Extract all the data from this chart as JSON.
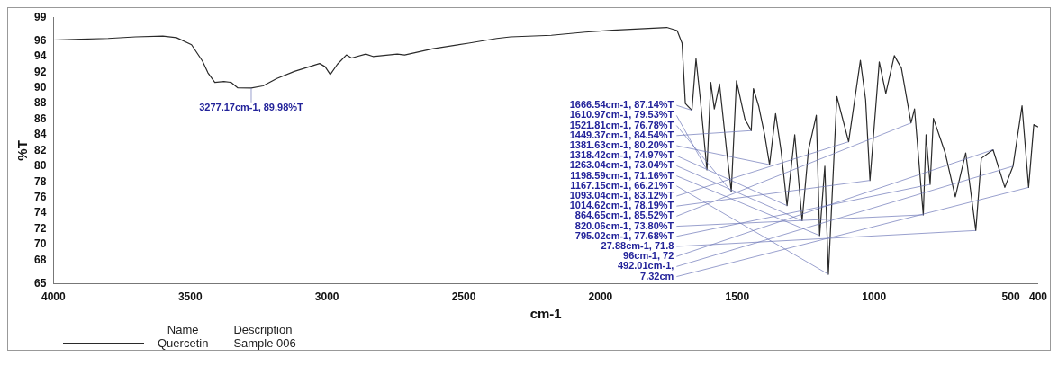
{
  "chart_data": {
    "type": "line",
    "xlabel": "cm-1",
    "ylabel": "%T",
    "legend_title": "Name",
    "legend": "bottom",
    "grid": false,
    "xlim": [
      4000,
      400
    ],
    "xticks": [
      4000,
      3500,
      3000,
      2500,
      2000,
      1500,
      1000,
      500,
      400
    ],
    "ylim": [
      65,
      99
    ],
    "yticks": [
      65,
      68,
      70,
      72,
      74,
      76,
      78,
      80,
      82,
      84,
      86,
      88,
      90,
      92,
      94,
      96,
      99
    ],
    "series": [
      {
        "name": "Quercetin",
        "color": "#2a2a2a",
        "x": [
          4000,
          3900,
          3800,
          3700,
          3600,
          3550,
          3495,
          3455,
          3435,
          3410,
          3377,
          3351,
          3326,
          3277,
          3234,
          3183,
          3119,
          3027,
          3007,
          2988,
          2962,
          2929,
          2910,
          2858,
          2832,
          2743,
          2716,
          2612,
          2482,
          2379,
          2329,
          2180,
          2056,
          1956,
          1758,
          1720,
          1702,
          1690,
          1666,
          1651,
          1635,
          1611,
          1597,
          1584,
          1565,
          1539,
          1522,
          1503,
          1472,
          1449,
          1441,
          1422,
          1400,
          1382,
          1360,
          1340,
          1318,
          1290,
          1263,
          1240,
          1211,
          1199,
          1180,
          1167,
          1136,
          1093,
          1050,
          1031,
          1015,
          981,
          957,
          926,
          900,
          865,
          852,
          820,
          810,
          795,
          783,
          740,
          703,
          665,
          628,
          608,
          565,
          522,
          492,
          459,
          435,
          416,
          400
        ],
        "values": [
          96.1,
          96.2,
          96.3,
          96.5,
          96.6,
          96.4,
          95.5,
          93.4,
          91.9,
          90.7,
          90.8,
          90.7,
          90.0,
          89.98,
          90.25,
          91.2,
          92.1,
          93.1,
          92.7,
          91.7,
          93.0,
          94.2,
          93.8,
          94.3,
          94.0,
          94.3,
          94.2,
          95.0,
          95.7,
          96.3,
          96.5,
          96.7,
          97.1,
          97.35,
          97.7,
          97.3,
          95.7,
          88.0,
          87.14,
          93.7,
          88.5,
          79.53,
          90.7,
          87.3,
          90.5,
          82.0,
          76.78,
          90.9,
          86.0,
          84.54,
          89.9,
          87.7,
          84.0,
          80.2,
          86.7,
          82.0,
          74.97,
          84.0,
          73.04,
          82.0,
          86.5,
          71.16,
          80.0,
          66.21,
          88.9,
          83.12,
          93.5,
          88.5,
          78.19,
          93.3,
          89.3,
          94.1,
          92.5,
          85.52,
          87.3,
          73.8,
          84.0,
          77.68,
          86.1,
          81.7,
          76.1,
          81.7,
          71.8,
          81.0,
          82.1,
          77.3,
          80.0,
          87.7,
          77.3,
          85.3,
          85.0
        ]
      }
    ],
    "annotations": [
      {
        "text": "3277.17cm-1, 89.98%T",
        "x": 3277,
        "y": 89.98
      },
      {
        "text": "1666.54cm-1, 87.14%T",
        "x": 1666,
        "y": 87.14
      },
      {
        "text": "1610.97cm-1, 79.53%T",
        "x": 1611,
        "y": 79.53
      },
      {
        "text": "1521.81cm-1, 76.78%T",
        "x": 1522,
        "y": 76.78
      },
      {
        "text": "1449.37cm-1, 84.54%T",
        "x": 1449,
        "y": 84.54
      },
      {
        "text": "1381.63cm-1, 80.20%T",
        "x": 1382,
        "y": 80.2
      },
      {
        "text": "1318.42cm-1, 74.97%T",
        "x": 1318,
        "y": 74.97
      },
      {
        "text": "1263.04cm-1, 73.04%T",
        "x": 1263,
        "y": 73.04
      },
      {
        "text": "1198.59cm-1, 71.16%T",
        "x": 1199,
        "y": 71.16
      },
      {
        "text": "1167.15cm-1, 66.21%T",
        "x": 1167,
        "y": 66.21
      },
      {
        "text": "1093.04cm-1, 83.12%T",
        "x": 1093,
        "y": 83.12
      },
      {
        "text": "1014.62cm-1, 78.19%T",
        "x": 1015,
        "y": 78.19
      },
      {
        "text": "864.65cm-1, 85.52%T",
        "x": 865,
        "y": 85.52
      },
      {
        "text": "820.06cm-1, 73.80%T",
        "x": 820,
        "y": 73.8
      },
      {
        "text": "795.02cm-1, 77.68%T",
        "x": 795,
        "y": 77.68
      },
      {
        "text": "27.88cm-1, 71.8",
        "x": 628,
        "y": 71.8
      },
      {
        "text": "96cm-1, 72",
        "x": 565,
        "y": 82.1
      },
      {
        "text": "492.01cm-1,",
        "x": 492,
        "y": 80.0
      },
      {
        "text": "7.32cm",
        "x": 435,
        "y": 77.3
      },
      "Description",
      "Sample 006"
    ]
  }
}
